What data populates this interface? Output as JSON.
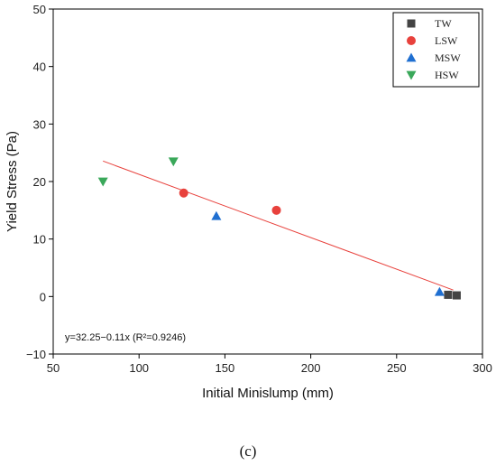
{
  "chart_data": {
    "type": "scatter",
    "xlabel": "Initial Minislump (mm)",
    "ylabel": "Yield Stress (Pa)",
    "xlim": [
      50,
      300
    ],
    "ylim": [
      -10,
      50
    ],
    "xticks": [
      50,
      100,
      150,
      200,
      250,
      300
    ],
    "yticks": [
      -10,
      0,
      10,
      20,
      30,
      40,
      50
    ],
    "xtick_labels": [
      "50",
      "100",
      "150",
      "200",
      "250",
      "300"
    ],
    "ytick_labels": [
      "−10",
      "0",
      "10",
      "20",
      "30",
      "40",
      "50"
    ],
    "grid": false,
    "legend_position": "top-right",
    "series": [
      {
        "name": "TW",
        "marker": "square",
        "color": "#444444",
        "points": [
          [
            280,
            0.3
          ],
          [
            285,
            0.2
          ]
        ]
      },
      {
        "name": "LSW",
        "marker": "circle",
        "color": "#e8413c",
        "points": [
          [
            126,
            18
          ],
          [
            180,
            15
          ]
        ]
      },
      {
        "name": "MSW",
        "marker": "triangle-up",
        "color": "#1f6fd1",
        "points": [
          [
            145,
            14
          ],
          [
            275,
            0.8
          ]
        ]
      },
      {
        "name": "HSW",
        "marker": "triangle-down",
        "color": "#3aa85a",
        "points": [
          [
            79,
            20
          ],
          [
            120,
            23.5
          ]
        ]
      }
    ],
    "fit_line": {
      "color": "#e8413c",
      "x": [
        79,
        283
      ],
      "y": [
        23.56,
        1.12
      ]
    },
    "annotation": "y=32.25−0.11x (R²=0.9246)",
    "caption": "(c)"
  }
}
